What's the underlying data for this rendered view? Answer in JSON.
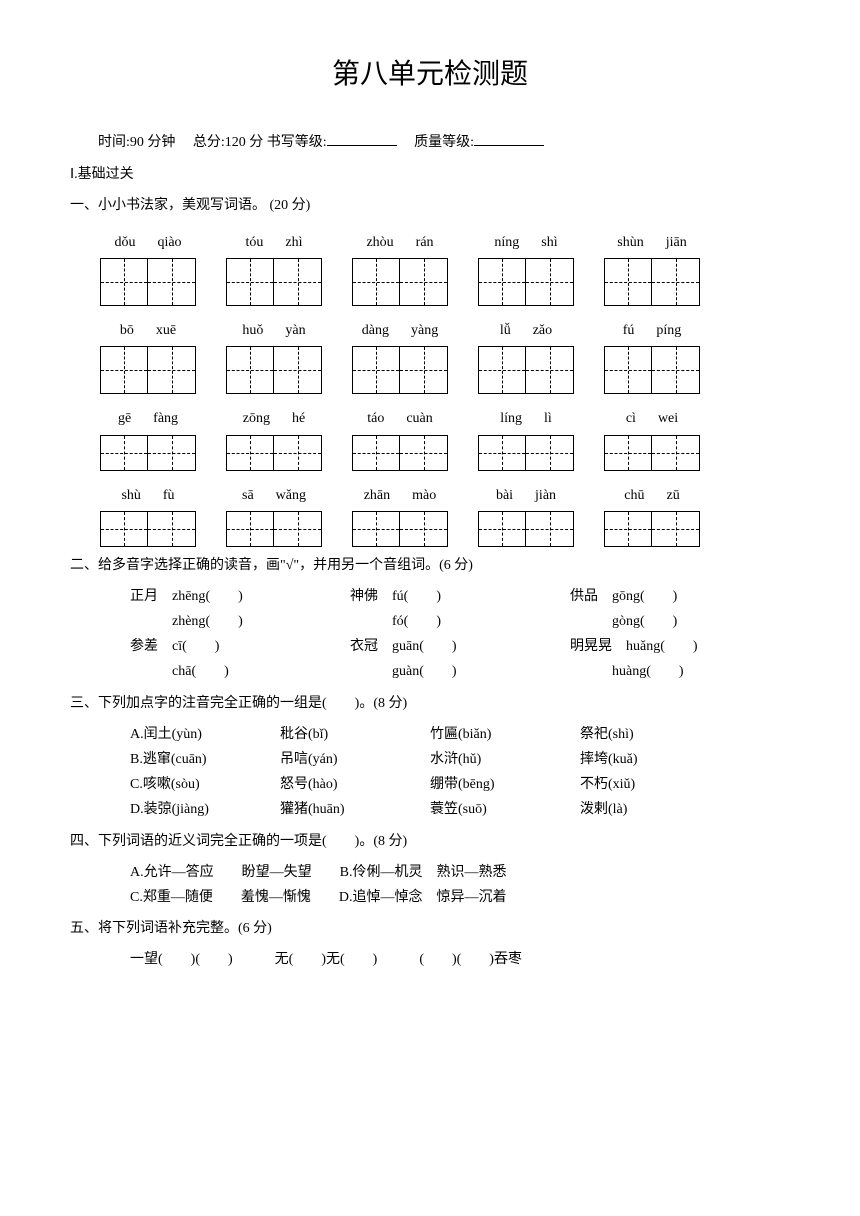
{
  "title": "第八单元检测题",
  "header": {
    "time_label": "时间:90 分钟",
    "total_label": "总分:120 分",
    "writing_label": "书写等级:",
    "quality_label": "质量等级:"
  },
  "section1": "Ⅰ.基础过关",
  "q1": {
    "title": "一、小小书法家，美观写词语。 (20 分)",
    "rows": [
      [
        [
          "dǒu",
          "qiào"
        ],
        [
          "tóu",
          "zhì"
        ],
        [
          "zhòu",
          "rán"
        ],
        [
          "níng",
          "shì"
        ],
        [
          "shùn",
          "jiān"
        ]
      ],
      [
        [
          "bō",
          "xuē"
        ],
        [
          "huǒ",
          "yàn"
        ],
        [
          "dàng",
          "yàng"
        ],
        [
          "lǚ",
          "zǎo"
        ],
        [
          "fú",
          "píng"
        ]
      ],
      [
        [
          "gē",
          "fàng"
        ],
        [
          "zōng",
          "hé"
        ],
        [
          "táo",
          "cuàn"
        ],
        [
          "líng",
          "lì"
        ],
        [
          "cì",
          "wei"
        ]
      ],
      [
        [
          "shù",
          "fù"
        ],
        [
          "sā",
          "wǎng"
        ],
        [
          "zhān",
          "mào"
        ],
        [
          "bài",
          "jiàn"
        ],
        [
          "chū",
          "zū"
        ]
      ]
    ]
  },
  "q2": {
    "title": "二、给多音字选择正确的读音，画\"√\"，并用另一个音组词。(6 分)",
    "items": [
      [
        {
          "label": "正月",
          "p": "zhēng"
        },
        {
          "label": "神佛",
          "p": "fú"
        },
        {
          "label": "供品",
          "p": "gōng"
        }
      ],
      [
        {
          "label": "",
          "p": "zhèng"
        },
        {
          "label": "",
          "p": "fó"
        },
        {
          "label": "",
          "p": "gòng"
        }
      ],
      [
        {
          "label": "参差",
          "p": "cī"
        },
        {
          "label": "衣冠",
          "p": "guān"
        },
        {
          "label": "明晃晃",
          "p": "huǎng"
        }
      ],
      [
        {
          "label": "",
          "p": "chā"
        },
        {
          "label": "",
          "p": "guàn"
        },
        {
          "label": "",
          "p": "huàng"
        }
      ]
    ]
  },
  "q3": {
    "title": "三、下列加点字的注音完全正确的一组是(　　)。(8 分)",
    "opts": [
      [
        "A.闰土(yùn)",
        "秕谷(bǐ)",
        "竹匾(biǎn)",
        "祭祀(shì)"
      ],
      [
        "B.逃窜(cuān)",
        "吊唁(yán)",
        "水浒(hǔ)",
        "摔垮(kuǎ)"
      ],
      [
        "C.咳嗽(sòu)",
        "怒号(hào)",
        "绷带(bēng)",
        "不朽(xiǔ)"
      ],
      [
        "D.装弶(jiàng)",
        "獾猪(huān)",
        "蓑笠(suō)",
        "泼剌(là)"
      ]
    ]
  },
  "q4": {
    "title": "四、下列词语的近义词完全正确的一项是(　　)。(8 分)",
    "opts": [
      "A.允许—答应　　盼望—失望　　B.伶俐—机灵　熟识—熟悉",
      "C.郑重—随便　　羞愧—惭愧　　D.追悼—悼念　惊异—沉着"
    ]
  },
  "q5": {
    "title": "五、将下列词语补充完整。(6 分)",
    "items": [
      "一望(　　)(　　)",
      "无(　　)无(　　)",
      "(　　)(　　)吞枣"
    ]
  }
}
